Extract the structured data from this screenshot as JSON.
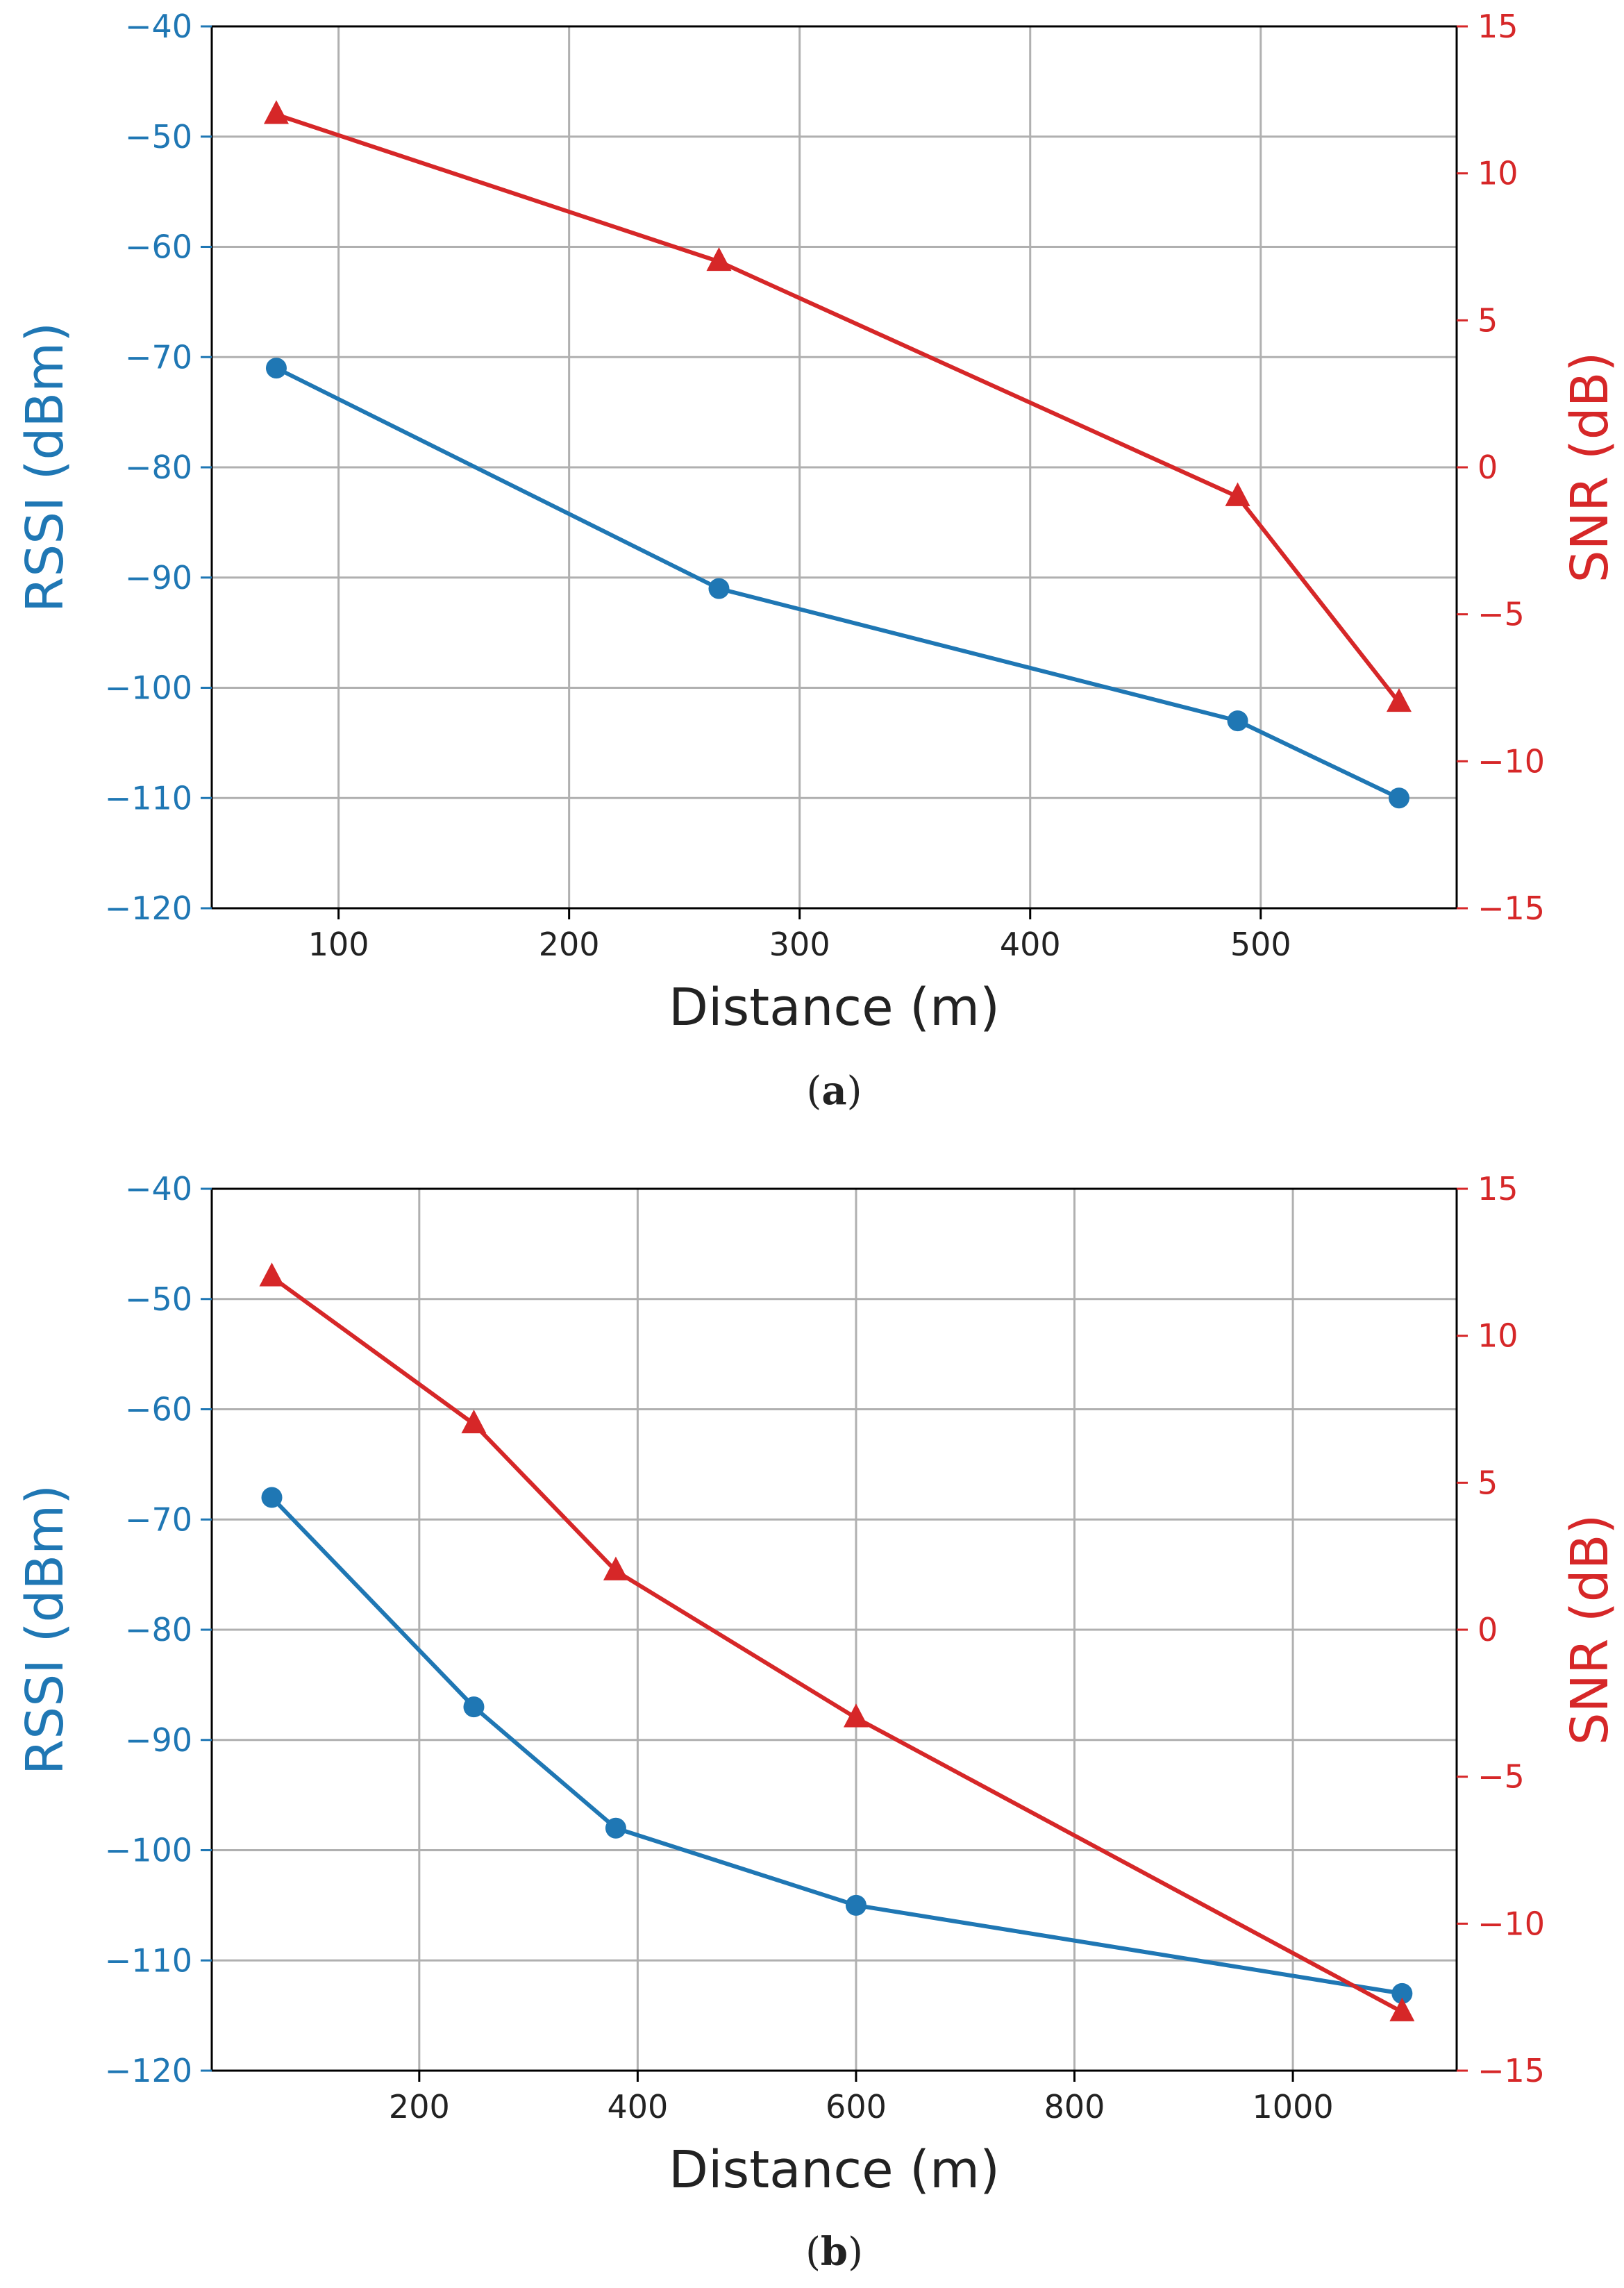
{
  "colors": {
    "rssi": "#1f77b4",
    "snr": "#d62728",
    "grid": "#b0b0b0",
    "axis": "#000000",
    "text": "#222222"
  },
  "chart_data": [
    {
      "id": "a",
      "type": "line",
      "caption_label": "a",
      "xlabel": "Distance (m)",
      "ylabel_left": "RSSI (dBm)",
      "ylabel_right": "SNR (dB)",
      "xlim": [
        45,
        585
      ],
      "xticks": [
        100,
        200,
        300,
        400,
        500
      ],
      "xtick_labels": [
        "100",
        "200",
        "300",
        "400",
        "500"
      ],
      "ylim_left": [
        -120,
        -40
      ],
      "yticks_left": [
        -40,
        -50,
        -60,
        -70,
        -80,
        -90,
        -100,
        -110,
        -120
      ],
      "ytick_labels_left": [
        "−40",
        "−50",
        "−60",
        "−70",
        "−80",
        "−90",
        "−100",
        "−110",
        "−120"
      ],
      "ylim_right": [
        -15,
        15
      ],
      "yticks_right": [
        15,
        10,
        5,
        0,
        -5,
        -10,
        -15
      ],
      "ytick_labels_right": [
        "15",
        "10",
        "5",
        "0",
        "−5",
        "−10",
        "−15"
      ],
      "grid": true,
      "series": [
        {
          "name": "RSSI",
          "axis": "left",
          "marker": "circle",
          "x": [
            73,
            265,
            490,
            560
          ],
          "values": [
            -71,
            -91,
            -103,
            -110
          ]
        },
        {
          "name": "SNR",
          "axis": "right",
          "marker": "triangle",
          "x": [
            73,
            265,
            490,
            560
          ],
          "values": [
            12,
            7,
            -1,
            -8
          ]
        }
      ]
    },
    {
      "id": "b",
      "type": "line",
      "caption_label": "b",
      "xlabel": "Distance (m)",
      "ylabel_left": "RSSI (dBm)",
      "ylabel_right": "SNR (dB)",
      "xlim": [
        10,
        1150
      ],
      "xticks": [
        200,
        400,
        600,
        800,
        1000
      ],
      "xtick_labels": [
        "200",
        "400",
        "600",
        "800",
        "1000"
      ],
      "ylim_left": [
        -120,
        -40
      ],
      "yticks_left": [
        -40,
        -50,
        -60,
        -70,
        -80,
        -90,
        -100,
        -110,
        -120
      ],
      "ytick_labels_left": [
        "−40",
        "−50",
        "−60",
        "−70",
        "−80",
        "−90",
        "−100",
        "−110",
        "−120"
      ],
      "ylim_right": [
        -15,
        15
      ],
      "yticks_right": [
        15,
        10,
        5,
        0,
        -5,
        -10,
        -15
      ],
      "ytick_labels_right": [
        "15",
        "10",
        "5",
        "0",
        "−5",
        "−10",
        "−15"
      ],
      "grid": true,
      "series": [
        {
          "name": "RSSI",
          "axis": "left",
          "marker": "circle",
          "x": [
            65,
            250,
            380,
            600,
            1100
          ],
          "values": [
            -68,
            -87,
            -98,
            -105,
            -113
          ]
        },
        {
          "name": "SNR",
          "axis": "right",
          "marker": "triangle",
          "x": [
            65,
            250,
            380,
            600,
            1100
          ],
          "values": [
            12,
            7,
            2,
            -3,
            -13
          ]
        }
      ]
    }
  ]
}
